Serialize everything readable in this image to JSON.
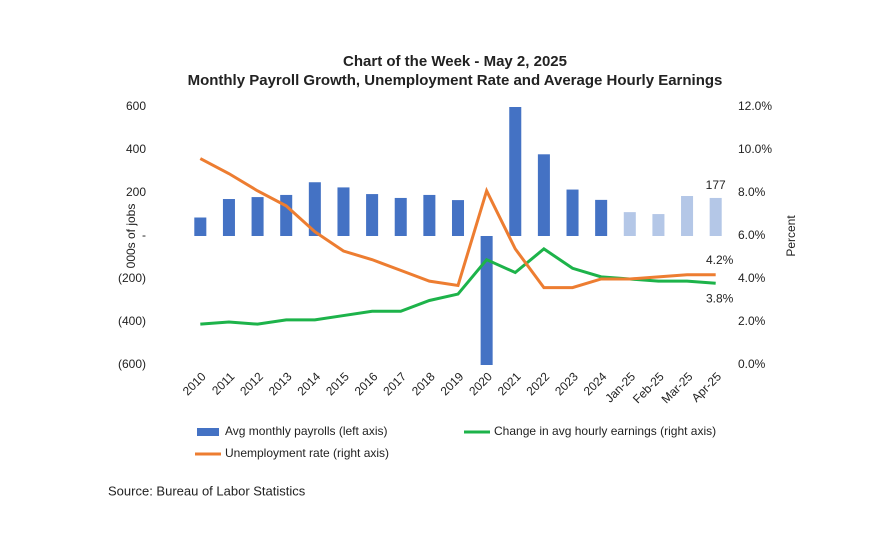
{
  "chart_data": {
    "type": "bar-line-combo",
    "title": "Chart of the Week - May 2, 2025",
    "subtitle": "Monthly Payroll Growth, Unemployment Rate and Average Hourly Earnings",
    "y_label": "000s of jobs",
    "y2_label": "Percent",
    "source": "Source: Bureau of Labor Statistics",
    "categories": [
      "2010",
      "2011",
      "2012",
      "2013",
      "2014",
      "2015",
      "2016",
      "2017",
      "2018",
      "2019",
      "2020",
      "2021",
      "2022",
      "2023",
      "2024",
      "Jan-25",
      "Feb-25",
      "Mar-25",
      "Apr-25"
    ],
    "ylim": [
      -600,
      600
    ],
    "yticks": [
      {
        "value": -600,
        "label": "(600)"
      },
      {
        "value": -400,
        "label": "(400)"
      },
      {
        "value": -200,
        "label": "(200)"
      },
      {
        "value": 0,
        "label": "-"
      },
      200,
      400,
      600
    ],
    "y2lim": [
      0,
      12
    ],
    "y2ticks": [
      {
        "value": 0,
        "label": "0.0%"
      },
      {
        "value": 2,
        "label": "2.0%"
      },
      {
        "value": 4,
        "label": "4.0%"
      },
      {
        "value": 6,
        "label": "6.0%"
      },
      {
        "value": 8,
        "label": "8.0%"
      },
      {
        "value": 10,
        "label": "10.0%"
      },
      {
        "value": 12,
        "label": "12.0%"
      }
    ],
    "series": [
      {
        "name": "Avg monthly payrolls (left axis)",
        "type": "bar",
        "color": "#4472c4",
        "colors": [
          "#4472c4",
          "#4472c4",
          "#4472c4",
          "#4472c4",
          "#4472c4",
          "#4472c4",
          "#4472c4",
          "#4472c4",
          "#4472c4",
          "#4472c4",
          "#4472c4",
          "#4472c4",
          "#4472c4",
          "#4472c4",
          "#4472c4",
          "#b4c7e7",
          "#b4c7e7",
          "#b4c7e7",
          "#b4c7e7"
        ],
        "values": [
          86,
          172,
          181,
          191,
          250,
          226,
          195,
          177,
          191,
          167,
          -600,
          600,
          380,
          216,
          168,
          111,
          102,
          186,
          177
        ],
        "label_last": true
      },
      {
        "name": "Change in avg hourly earnings (right axis)",
        "type": "line",
        "axis": "y2",
        "color": "#1db34a",
        "values": [
          1.9,
          2.0,
          1.9,
          2.1,
          2.1,
          2.3,
          2.5,
          2.5,
          3.0,
          3.3,
          4.9,
          4.3,
          5.4,
          4.5,
          4.1,
          4.0,
          3.9,
          3.9,
          3.8
        ],
        "value_labels": [
          null,
          null,
          null,
          null,
          null,
          null,
          null,
          null,
          null,
          null,
          null,
          null,
          null,
          null,
          null,
          null,
          null,
          null,
          "3.8%"
        ]
      },
      {
        "name": "Unemployment rate (right axis)",
        "type": "line",
        "axis": "y2",
        "color": "#ed7d31",
        "values": [
          9.6,
          8.9,
          8.1,
          7.4,
          6.2,
          5.3,
          4.9,
          4.4,
          3.9,
          3.7,
          8.1,
          5.4,
          3.6,
          3.6,
          4.0,
          4.0,
          4.1,
          4.2,
          4.2
        ],
        "value_labels": [
          null,
          null,
          null,
          null,
          null,
          null,
          null,
          null,
          null,
          null,
          null,
          null,
          null,
          null,
          null,
          null,
          null,
          null,
          "4.2%"
        ]
      }
    ]
  }
}
